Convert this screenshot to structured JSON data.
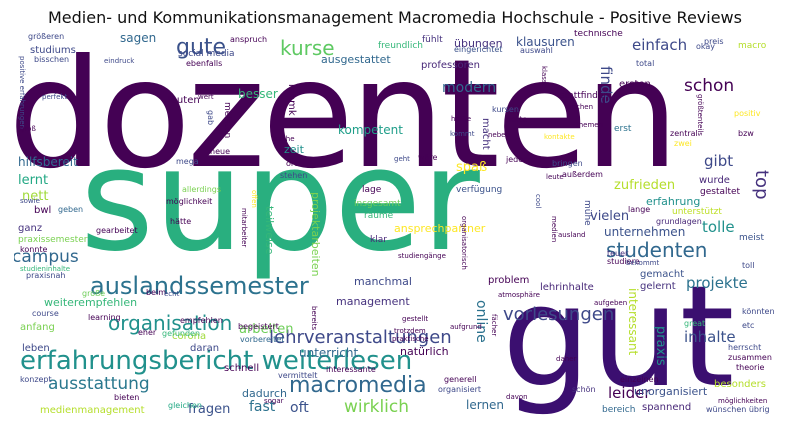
{
  "title": "Medien- und Kommunikationsmanagement Macromedia Hochschule - Positive Reviews",
  "words": [
    {
      "text": "dozenten",
      "color": "#440154"
    },
    {
      "text": "super",
      "color": "#29af7f"
    },
    {
      "text": "gut",
      "color": "#3b0f70"
    },
    {
      "text": "erfahrungsbericht weiterlesen",
      "color": "#21918c"
    },
    {
      "text": "auslandssemester",
      "color": "#2c728e"
    },
    {
      "text": "macromedia",
      "color": "#31688e"
    },
    {
      "text": "gute",
      "color": "#3b528b"
    },
    {
      "text": "kurse",
      "color": "#5ec962"
    },
    {
      "text": "studenten",
      "color": "#31688e"
    },
    {
      "text": "organisation",
      "color": "#21918c"
    },
    {
      "text": "lehrveranstaltungen",
      "color": "#3e4989"
    },
    {
      "text": "vorlesungen",
      "color": "#3e4989"
    },
    {
      "text": "ausstattung",
      "color": "#2a788e"
    },
    {
      "text": "wirklich",
      "color": "#7ad151"
    },
    {
      "text": "campus",
      "color": "#31688e"
    },
    {
      "text": "schon",
      "color": "#440154"
    },
    {
      "text": "top",
      "color": "#46327e"
    },
    {
      "text": "projekte",
      "color": "#2c728e"
    },
    {
      "text": "inhalte",
      "color": "#3b528b"
    },
    {
      "text": "gibt",
      "color": "#3e4989"
    },
    {
      "text": "tolle",
      "color": "#21918c"
    },
    {
      "text": "leider",
      "color": "#440154"
    },
    {
      "text": "fast",
      "color": "#2c728e"
    },
    {
      "text": "oft",
      "color": "#3b528b"
    },
    {
      "text": "einfach",
      "color": "#3e4989"
    },
    {
      "text": "modern",
      "color": "#31688e"
    },
    {
      "text": "finde",
      "color": "#3e4989"
    },
    {
      "text": "zufrieden",
      "color": "#b5de2b"
    },
    {
      "text": "spaß",
      "color": "#fde725"
    },
    {
      "text": "arbeiten",
      "color": "#6ece58"
    },
    {
      "text": "lernen",
      "color": "#31688e"
    },
    {
      "text": "fragen",
      "color": "#3b528b"
    },
    {
      "text": "unterricht",
      "color": "#31688e"
    },
    {
      "text": "online",
      "color": "#2c728e"
    },
    {
      "text": "praxis",
      "color": "#21918c"
    },
    {
      "text": "lernt",
      "color": "#22a884"
    },
    {
      "text": "nett",
      "color": "#a0da39"
    },
    {
      "text": "kompetent",
      "color": "#1f9e89"
    },
    {
      "text": "besser",
      "color": "#35b779"
    },
    {
      "text": "vielen",
      "color": "#3e4989"
    },
    {
      "text": "erfahrung",
      "color": "#21918c"
    },
    {
      "text": "unternehmen",
      "color": "#3b528b"
    },
    {
      "text": "interessant",
      "color": "#b5de2b"
    },
    {
      "text": "management",
      "color": "#46327e"
    },
    {
      "text": "weiterempfehlen",
      "color": "#35b779"
    },
    {
      "text": "dadurch",
      "color": "#31688e"
    },
    {
      "text": "ansprechpartner",
      "color": "#fde725"
    },
    {
      "text": "manchmal",
      "color": "#3e4989"
    },
    {
      "text": "hilfsbereit",
      "color": "#31688e"
    },
    {
      "text": "klausuren",
      "color": "#3b528b"
    },
    {
      "text": "übungen",
      "color": "#46327e"
    },
    {
      "text": "sagen",
      "color": "#31688e"
    },
    {
      "text": "ausgestattet",
      "color": "#31688e"
    },
    {
      "text": "professoren",
      "color": "#482878"
    },
    {
      "text": "studiums",
      "color": "#3e4989"
    },
    {
      "text": "leuten",
      "color": "#440154"
    },
    {
      "text": "zeit",
      "color": "#21918c"
    },
    {
      "text": "teilweise",
      "color": "#35b779"
    },
    {
      "text": "projektarbeiten",
      "color": "#7ad151"
    },
    {
      "text": "problem",
      "color": "#440154"
    },
    {
      "text": "lehrinhalte",
      "color": "#482878"
    },
    {
      "text": "gemacht",
      "color": "#3b528b"
    },
    {
      "text": "gelernt",
      "color": "#46327e"
    },
    {
      "text": "unorganisiert",
      "color": "#3b528b"
    },
    {
      "text": "spannend",
      "color": "#482878"
    },
    {
      "text": "besonders",
      "color": "#b5de2b"
    },
    {
      "text": "wurde",
      "color": "#482878"
    },
    {
      "text": "gestaltet",
      "color": "#440154"
    },
    {
      "text": "unterstützt",
      "color": "#bddf26"
    },
    {
      "text": "meist",
      "color": "#3b528b"
    },
    {
      "text": "anfang",
      "color": "#7ad151"
    },
    {
      "text": "corona",
      "color": "#a0da39"
    },
    {
      "text": "daran",
      "color": "#3e4989"
    },
    {
      "text": "leben",
      "color": "#3e4989"
    },
    {
      "text": "schnell",
      "color": "#440154"
    },
    {
      "text": "medienmanagement",
      "color": "#b5de2b"
    },
    {
      "text": "mhmk",
      "color": "#440154"
    },
    {
      "text": "bwl",
      "color": "#440154"
    },
    {
      "text": "ganz",
      "color": "#46327e"
    },
    {
      "text": "campus",
      "color": "#31688e"
    },
    {
      "text": "lage",
      "color": "#440154"
    },
    {
      "text": "insgesamt",
      "color": "#6ece58"
    },
    {
      "text": "räume",
      "color": "#35b779"
    },
    {
      "text": "klar",
      "color": "#482878"
    },
    {
      "text": "verfügung",
      "color": "#3b528b"
    },
    {
      "text": "macht",
      "color": "#46327e"
    },
    {
      "text": "mühe",
      "color": "#3e4989"
    },
    {
      "text": "stattfinden",
      "color": "#440154"
    },
    {
      "text": "erst",
      "color": "#2c728e"
    },
    {
      "text": "ersten",
      "color": "#440154"
    },
    {
      "text": "technische",
      "color": "#440154"
    },
    {
      "text": "freundlich",
      "color": "#35b779"
    },
    {
      "text": "social media",
      "color": "#3e4989"
    },
    {
      "text": "fühlt",
      "color": "#46327e"
    },
    {
      "text": "ebenfalls",
      "color": "#440154"
    },
    {
      "text": "eingerichtet",
      "color": "#3b528b"
    },
    {
      "text": "auswahl",
      "color": "#3e4989"
    },
    {
      "text": "okay",
      "color": "#3e4989"
    },
    {
      "text": "preis",
      "color": "#3e4989"
    },
    {
      "text": "macro",
      "color": "#b5de2b"
    },
    {
      "text": "total",
      "color": "#3e4989"
    },
    {
      "text": "größeren",
      "color": "#3e4989"
    },
    {
      "text": "positiv",
      "color": "#fde725"
    },
    {
      "text": "zentral",
      "color": "#440154"
    },
    {
      "text": "bzw",
      "color": "#440154"
    },
    {
      "text": "zwei",
      "color": "#fde725"
    },
    {
      "text": "bringen",
      "color": "#3e4989"
    },
    {
      "text": "außerdem",
      "color": "#440154"
    },
    {
      "text": "grundlagen",
      "color": "#482878"
    },
    {
      "text": "lange",
      "color": "#440154"
    },
    {
      "text": "teuer",
      "color": "#46327e"
    },
    {
      "text": "studiere",
      "color": "#440154"
    },
    {
      "text": "toll",
      "color": "#3e4989"
    },
    {
      "text": "great",
      "color": "#35b779"
    },
    {
      "text": "könnten",
      "color": "#3e4989"
    },
    {
      "text": "etc",
      "color": "#3e4989"
    },
    {
      "text": "herrscht",
      "color": "#3e4989"
    },
    {
      "text": "zusammen",
      "color": "#440154"
    },
    {
      "text": "theorie",
      "color": "#440154"
    },
    {
      "text": "möglichkeiten",
      "color": "#440154"
    },
    {
      "text": "wünschen übrig",
      "color": "#3e4989"
    },
    {
      "text": "bereich",
      "color": "#31688e"
    },
    {
      "text": "schön",
      "color": "#46327e"
    },
    {
      "text": "einzelnen",
      "color": "#440154"
    },
    {
      "text": "organisiert",
      "color": "#3e4989"
    },
    {
      "text": "generell",
      "color": "#440154"
    },
    {
      "text": "interessante",
      "color": "#440154"
    },
    {
      "text": "vermittelt",
      "color": "#3e4989"
    },
    {
      "text": "sogar",
      "color": "#440154"
    },
    {
      "text": "bieten",
      "color": "#440154"
    },
    {
      "text": "gleichen",
      "color": "#22a884"
    },
    {
      "text": "konzept",
      "color": "#3e4989"
    },
    {
      "text": "praxisnah",
      "color": "#3e4989"
    },
    {
      "text": "learning",
      "color": "#440154"
    },
    {
      "text": "eher",
      "color": "#440154"
    },
    {
      "text": "gefunden",
      "color": "#35b779"
    },
    {
      "text": "empfehlen",
      "color": "#440154"
    },
    {
      "text": "vorbereitet",
      "color": "#31688e"
    },
    {
      "text": "begeistert",
      "color": "#440154"
    },
    {
      "text": "course",
      "color": "#3e4989"
    },
    {
      "text": "beim",
      "color": "#440154"
    },
    {
      "text": "echt",
      "color": "#3e4989"
    },
    {
      "text": "große",
      "color": "#6ece58"
    },
    {
      "text": "studieninhalte",
      "color": "#35b779"
    },
    {
      "text": "konnte",
      "color": "#440154"
    },
    {
      "text": "praxissemester",
      "color": "#7ad151"
    },
    {
      "text": "gearbeitet",
      "color": "#440154"
    },
    {
      "text": "geben",
      "color": "#31688e"
    },
    {
      "text": "sowie",
      "color": "#3e4989"
    },
    {
      "text": "möglichkeit",
      "color": "#440154"
    },
    {
      "text": "allerdings",
      "color": "#7ad151"
    },
    {
      "text": "hätte",
      "color": "#440154"
    },
    {
      "text": "mitarbeiter",
      "color": "#440154"
    },
    {
      "text": "offen",
      "color": "#fde725"
    },
    {
      "text": "neue",
      "color": "#440154"
    },
    {
      "text": "mega",
      "color": "#3e4989"
    },
    {
      "text": "sache",
      "color": "#440154"
    },
    {
      "text": "meisten",
      "color": "#440154"
    },
    {
      "text": "gab",
      "color": "#3e4989"
    },
    {
      "text": "wert",
      "color": "#440154"
    },
    {
      "text": "ort",
      "color": "#440154"
    },
    {
      "text": "geht",
      "color": "#3e4989"
    },
    {
      "text": "wäre",
      "color": "#440154"
    },
    {
      "text": "jederzeit",
      "color": "#440154"
    },
    {
      "text": "stehen",
      "color": "#3e4989"
    },
    {
      "text": "anspruch",
      "color": "#440154"
    },
    {
      "text": "eindruck",
      "color": "#3e4989"
    },
    {
      "text": "bisschen",
      "color": "#3e4989"
    },
    {
      "text": "perfekt",
      "color": "#3e4989"
    },
    {
      "text": "positive erfahrungen",
      "color": "#3e4989"
    },
    {
      "text": "groß",
      "color": "#440154"
    },
    {
      "text": "kursen",
      "color": "#3e4989"
    },
    {
      "text": "nette",
      "color": "#440154"
    },
    {
      "text": "kommt",
      "color": "#3e4989"
    },
    {
      "text": "neben",
      "color": "#440154"
    },
    {
      "text": "hälfte",
      "color": "#440154"
    },
    {
      "text": "wochen",
      "color": "#440154"
    },
    {
      "text": "themen",
      "color": "#440154"
    },
    {
      "text": "kontakte",
      "color": "#fde725"
    },
    {
      "text": "klasse",
      "color": "#440154"
    },
    {
      "text": "größtenteils",
      "color": "#440154"
    },
    {
      "text": "leute",
      "color": "#440154"
    },
    {
      "text": "cool",
      "color": "#3e4989"
    },
    {
      "text": "medien",
      "color": "#440154"
    },
    {
      "text": "ausland",
      "color": "#440154"
    },
    {
      "text": "bekommt",
      "color": "#3e4989"
    },
    {
      "text": "studiengänge",
      "color": "#440154"
    },
    {
      "text": "organisatorisch",
      "color": "#440154"
    },
    {
      "text": "atmosphäre",
      "color": "#440154"
    },
    {
      "text": "bereits",
      "color": "#440154"
    },
    {
      "text": "gestellt",
      "color": "#440154"
    },
    {
      "text": "trotzdem",
      "color": "#440154"
    },
    {
      "text": "praktische",
      "color": "#440154"
    },
    {
      "text": "aufgrund",
      "color": "#440154"
    },
    {
      "text": "aufgeben",
      "color": "#440154"
    },
    {
      "text": "fächer",
      "color": "#440154"
    },
    {
      "text": "daher",
      "color": "#440154"
    },
    {
      "text": "davon",
      "color": "#440154"
    },
    {
      "text": "natürlich",
      "color": "#440154"
    }
  ]
}
